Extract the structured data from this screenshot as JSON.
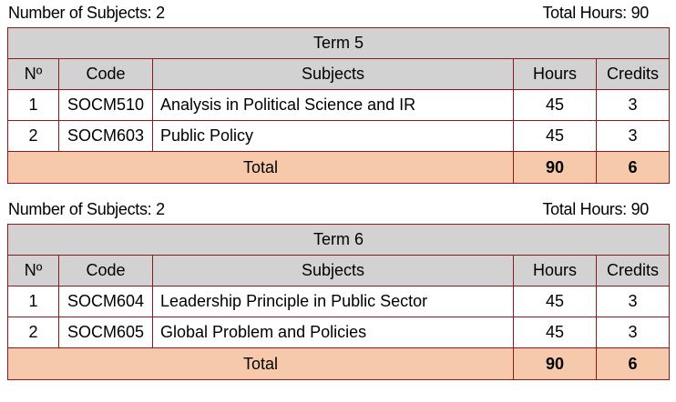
{
  "terms": [
    {
      "subjects_label": "Number of Subjects: 2",
      "hours_label": "Total Hours: 90",
      "term_title": "Term 5",
      "headers": [
        "Nº",
        "Code",
        "Subjects",
        "Hours",
        "Credits"
      ],
      "rows": [
        {
          "no": "1",
          "code": "SOCM510",
          "subject": "Analysis in Political Science and IR",
          "hours": "45",
          "credits": "3"
        },
        {
          "no": "2",
          "code": "SOCM603",
          "subject": "Public Policy",
          "hours": "45",
          "credits": "3"
        }
      ],
      "total": {
        "label": "Total",
        "hours": "90",
        "credits": "6"
      }
    },
    {
      "subjects_label": "Number of Subjects: 2",
      "hours_label": "Total Hours: 90",
      "term_title": "Term 6",
      "headers": [
        "Nº",
        "Code",
        "Subjects",
        "Hours",
        "Credits"
      ],
      "rows": [
        {
          "no": "1",
          "code": "SOCM604",
          "subject": "Leadership Principle in Public Sector",
          "hours": "45",
          "credits": "3"
        },
        {
          "no": "2",
          "code": "SOCM605",
          "subject": "Global Problem and Policies",
          "hours": "45",
          "credits": "3"
        }
      ],
      "total": {
        "label": "Total",
        "hours": "90",
        "credits": "6"
      }
    }
  ]
}
